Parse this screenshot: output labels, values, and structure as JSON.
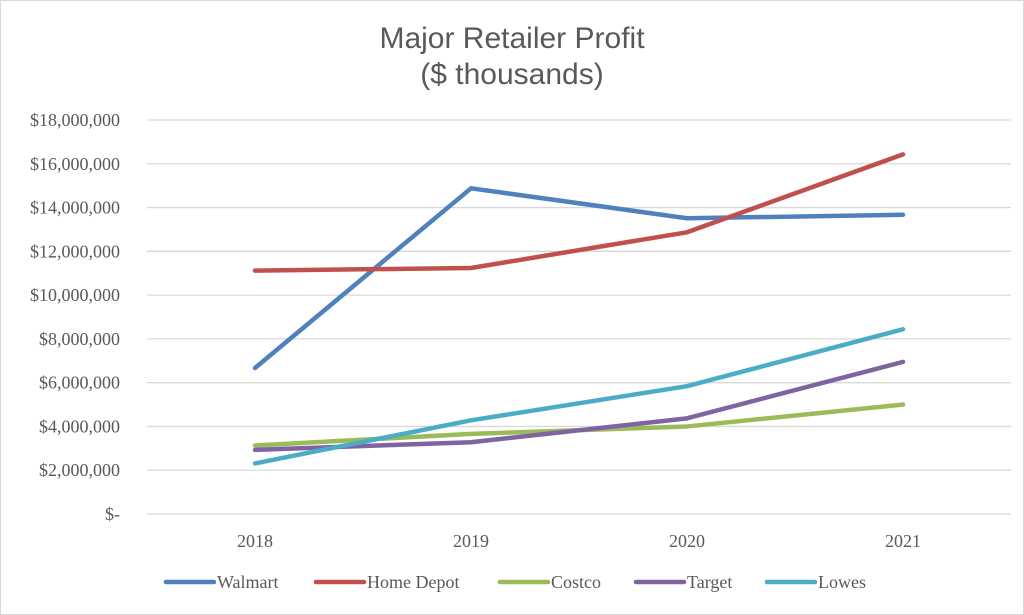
{
  "chart_data": {
    "type": "line",
    "title": "Major Retailer Profit",
    "subtitle": "($ thousands)",
    "xlabel": "",
    "ylabel": "",
    "categories": [
      "2018",
      "2019",
      "2020",
      "2021"
    ],
    "ylim": [
      0,
      18000000
    ],
    "yticks": [
      0,
      2000000,
      4000000,
      6000000,
      8000000,
      10000000,
      12000000,
      14000000,
      16000000,
      18000000
    ],
    "ytick_labels": [
      "$-",
      "$2,000,000",
      "$4,000,000",
      "$6,000,000",
      "$8,000,000",
      "$10,000,000",
      "$12,000,000",
      "$14,000,000",
      "$16,000,000",
      "$18,000,000"
    ],
    "grid": "horizontal",
    "legend_position": "bottom",
    "series": [
      {
        "name": "Walmart",
        "color": "#4F81BD",
        "values": [
          6670000,
          14880000,
          13510000,
          13670000
        ]
      },
      {
        "name": "Home Depot",
        "color": "#C0504D",
        "values": [
          11120000,
          11240000,
          12870000,
          16430000
        ]
      },
      {
        "name": "Costco",
        "color": "#9BBB59",
        "values": [
          3130000,
          3660000,
          4000000,
          5000000
        ]
      },
      {
        "name": "Target",
        "color": "#8064A2",
        "values": [
          2930000,
          3280000,
          4370000,
          6950000
        ]
      },
      {
        "name": "Lowes",
        "color": "#4BACC6",
        "values": [
          2310000,
          4280000,
          5840000,
          8440000
        ]
      }
    ]
  }
}
